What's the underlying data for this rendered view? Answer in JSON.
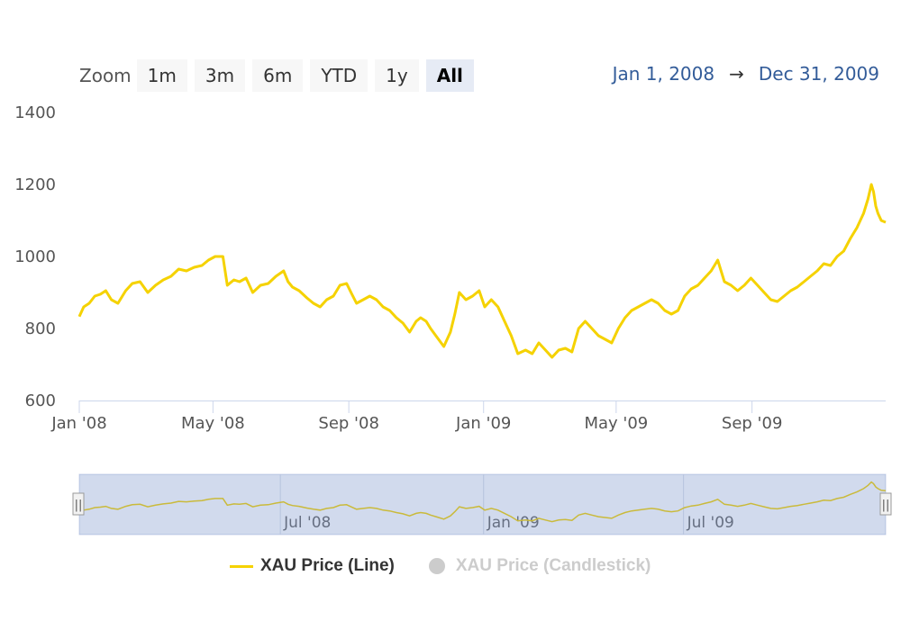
{
  "toolbar": {
    "zoom_label": "Zoom",
    "buttons": [
      "1m",
      "3m",
      "6m",
      "YTD",
      "1y",
      "All"
    ],
    "active": "All"
  },
  "range": {
    "from": "Jan 1, 2008",
    "arrow": "→",
    "to": "Dec 31, 2009"
  },
  "navigator": {
    "labels": [
      "Jul '08",
      "Jan '09",
      "Jul '09"
    ],
    "handle_glyph": "||"
  },
  "legend": [
    {
      "label": "XAU Price (Line)",
      "color": "#f5d200",
      "visible": true
    },
    {
      "label": "XAU Price (Candlestick)",
      "color": "#cccccc",
      "visible": false
    }
  ],
  "colors": {
    "line": "#f5d200",
    "axis": "#ccd6eb",
    "navigator_mask": "rgba(102,133,194,0.3)"
  },
  "chart_data": {
    "type": "line",
    "x_tick_labels": [
      "Jan '08",
      "May '08",
      "Sep '08",
      "Jan '09",
      "May '09",
      "Sep '09"
    ],
    "x_tick_dates": [
      "2008-01-01",
      "2008-05-01",
      "2008-09-01",
      "2009-01-01",
      "2009-05-01",
      "2009-09-01"
    ],
    "y_ticks": [
      600,
      800,
      1000,
      1200,
      1400
    ],
    "ylim": [
      600,
      1400
    ],
    "xlim": [
      "2008-01-01",
      "2009-12-31"
    ],
    "grid": false,
    "series": [
      {
        "name": "XAU Price (Line)",
        "points": [
          [
            "2008-01-01",
            833
          ],
          [
            "2008-01-05",
            860
          ],
          [
            "2008-01-10",
            870
          ],
          [
            "2008-01-15",
            890
          ],
          [
            "2008-01-20",
            895
          ],
          [
            "2008-01-25",
            905
          ],
          [
            "2008-01-30",
            880
          ],
          [
            "2008-02-05",
            870
          ],
          [
            "2008-02-12",
            905
          ],
          [
            "2008-02-18",
            925
          ],
          [
            "2008-02-25",
            930
          ],
          [
            "2008-03-03",
            900
          ],
          [
            "2008-03-10",
            920
          ],
          [
            "2008-03-17",
            935
          ],
          [
            "2008-03-24",
            945
          ],
          [
            "2008-03-31",
            965
          ],
          [
            "2008-04-07",
            960
          ],
          [
            "2008-04-14",
            970
          ],
          [
            "2008-04-21",
            975
          ],
          [
            "2008-04-27",
            990
          ],
          [
            "2008-05-03",
            1000
          ],
          [
            "2008-05-10",
            1000
          ],
          [
            "2008-05-14",
            920
          ],
          [
            "2008-05-20",
            935
          ],
          [
            "2008-05-25",
            930
          ],
          [
            "2008-05-31",
            940
          ],
          [
            "2008-06-06",
            900
          ],
          [
            "2008-06-13",
            920
          ],
          [
            "2008-06-20",
            925
          ],
          [
            "2008-06-27",
            945
          ],
          [
            "2008-07-04",
            960
          ],
          [
            "2008-07-08",
            930
          ],
          [
            "2008-07-12",
            915
          ],
          [
            "2008-07-18",
            905
          ],
          [
            "2008-07-25",
            885
          ],
          [
            "2008-07-31",
            870
          ],
          [
            "2008-08-06",
            860
          ],
          [
            "2008-08-12",
            880
          ],
          [
            "2008-08-18",
            890
          ],
          [
            "2008-08-24",
            920
          ],
          [
            "2008-08-30",
            925
          ],
          [
            "2008-09-03",
            900
          ],
          [
            "2008-09-08",
            870
          ],
          [
            "2008-09-14",
            880
          ],
          [
            "2008-09-20",
            890
          ],
          [
            "2008-09-26",
            880
          ],
          [
            "2008-10-02",
            860
          ],
          [
            "2008-10-08",
            850
          ],
          [
            "2008-10-14",
            830
          ],
          [
            "2008-10-20",
            815
          ],
          [
            "2008-10-26",
            790
          ],
          [
            "2008-11-01",
            820
          ],
          [
            "2008-11-05",
            830
          ],
          [
            "2008-11-10",
            820
          ],
          [
            "2008-11-14",
            800
          ],
          [
            "2008-11-20",
            775
          ],
          [
            "2008-11-26",
            750
          ],
          [
            "2008-12-02",
            790
          ],
          [
            "2008-12-06",
            840
          ],
          [
            "2008-12-10",
            900
          ],
          [
            "2008-12-16",
            880
          ],
          [
            "2008-12-22",
            890
          ],
          [
            "2008-12-28",
            905
          ],
          [
            "2009-01-02",
            860
          ],
          [
            "2009-01-08",
            880
          ],
          [
            "2009-01-14",
            860
          ],
          [
            "2009-01-20",
            820
          ],
          [
            "2009-01-26",
            780
          ],
          [
            "2009-02-01",
            730
          ],
          [
            "2009-02-08",
            740
          ],
          [
            "2009-02-14",
            730
          ],
          [
            "2009-02-20",
            760
          ],
          [
            "2009-02-26",
            740
          ],
          [
            "2009-03-04",
            720
          ],
          [
            "2009-03-10",
            740
          ],
          [
            "2009-03-16",
            745
          ],
          [
            "2009-03-22",
            735
          ],
          [
            "2009-03-28",
            800
          ],
          [
            "2009-04-03",
            820
          ],
          [
            "2009-04-09",
            800
          ],
          [
            "2009-04-15",
            780
          ],
          [
            "2009-04-21",
            770
          ],
          [
            "2009-04-27",
            760
          ],
          [
            "2009-05-03",
            800
          ],
          [
            "2009-05-09",
            830
          ],
          [
            "2009-05-15",
            850
          ],
          [
            "2009-05-21",
            860
          ],
          [
            "2009-05-27",
            870
          ],
          [
            "2009-06-02",
            880
          ],
          [
            "2009-06-08",
            870
          ],
          [
            "2009-06-14",
            850
          ],
          [
            "2009-06-20",
            840
          ],
          [
            "2009-06-26",
            850
          ],
          [
            "2009-07-02",
            890
          ],
          [
            "2009-07-08",
            910
          ],
          [
            "2009-07-14",
            920
          ],
          [
            "2009-07-20",
            940
          ],
          [
            "2009-07-26",
            960
          ],
          [
            "2009-08-01",
            990
          ],
          [
            "2009-08-07",
            930
          ],
          [
            "2009-08-13",
            920
          ],
          [
            "2009-08-19",
            905
          ],
          [
            "2009-08-25",
            920
          ],
          [
            "2009-08-31",
            940
          ],
          [
            "2009-09-06",
            920
          ],
          [
            "2009-09-12",
            900
          ],
          [
            "2009-09-18",
            880
          ],
          [
            "2009-09-24",
            875
          ],
          [
            "2009-09-30",
            890
          ],
          [
            "2009-10-06",
            905
          ],
          [
            "2009-10-12",
            915
          ],
          [
            "2009-10-18",
            930
          ],
          [
            "2009-10-24",
            945
          ],
          [
            "2009-10-30",
            960
          ],
          [
            "2009-11-05",
            980
          ],
          [
            "2009-11-11",
            975
          ],
          [
            "2009-11-17",
            1000
          ],
          [
            "2009-11-23",
            1015
          ],
          [
            "2009-11-29",
            1050
          ],
          [
            "2009-12-05",
            1080
          ],
          [
            "2009-12-11",
            1120
          ],
          [
            "2009-12-15",
            1160
          ],
          [
            "2009-12-18",
            1200
          ],
          [
            "2009-12-20",
            1180
          ],
          [
            "2009-12-22",
            1140
          ],
          [
            "2009-12-24",
            1120
          ],
          [
            "2009-12-27",
            1100
          ],
          [
            "2009-12-31",
            1095
          ]
        ]
      }
    ]
  }
}
